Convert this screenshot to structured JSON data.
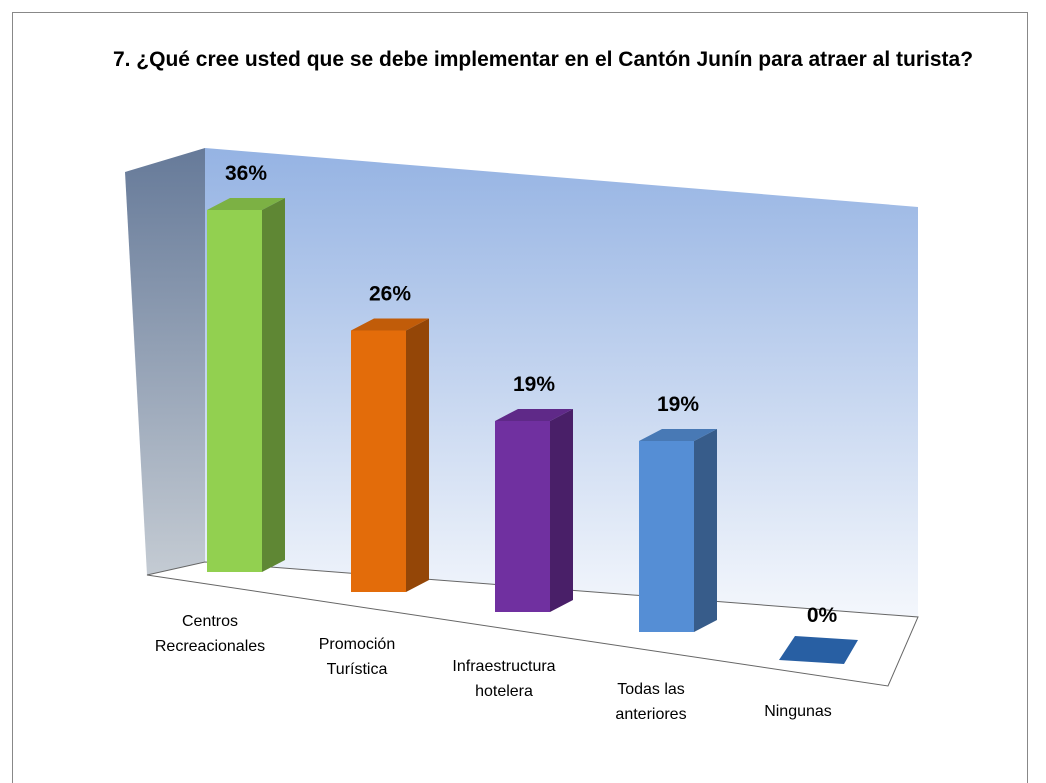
{
  "chart_data": {
    "type": "bar3d",
    "title": "7. ¿Qué cree usted que se debe  implementar  en el Cantón Junín para atraer al turista?",
    "categories": [
      "Centros Recreacionales",
      "Promoción Turística",
      "Infraestructura hotelera",
      "Todas las anteriores",
      "Ningunas"
    ],
    "values": [
      36,
      26,
      19,
      19,
      0
    ],
    "value_labels": [
      "36%",
      "26%",
      "19%",
      "19%",
      "0%"
    ],
    "colors": [
      "#92d050",
      "#e36c0a",
      "#7030a0",
      "#558ed5",
      "#1f497d"
    ]
  }
}
